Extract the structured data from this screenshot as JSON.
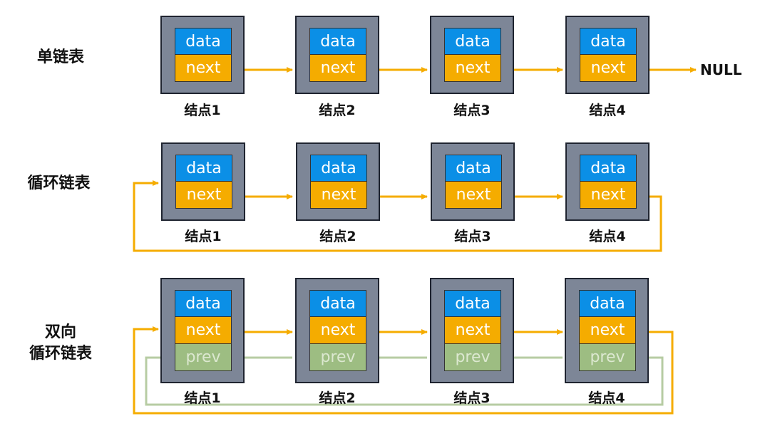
{
  "rows": [
    {
      "label": "单链表",
      "label_lines": [
        "单链表"
      ]
    },
    {
      "label": "循环链表",
      "label_lines": [
        "循环链表"
      ]
    },
    {
      "label": "双向循环链表",
      "label_lines": [
        "双向",
        "循环链表"
      ]
    }
  ],
  "node_fields": {
    "data": "data",
    "next": "next",
    "prev": "prev"
  },
  "node_names": [
    "结点1",
    "结点2",
    "结点3",
    "结点4"
  ],
  "null_text": "NULL",
  "colors": {
    "data": "#0b8fe6",
    "next": "#f5ac00",
    "prev": "#9dbd82",
    "box": "#7d8697",
    "arrow_next": "#f5ac00",
    "arrow_prev": "#b7cca3"
  }
}
